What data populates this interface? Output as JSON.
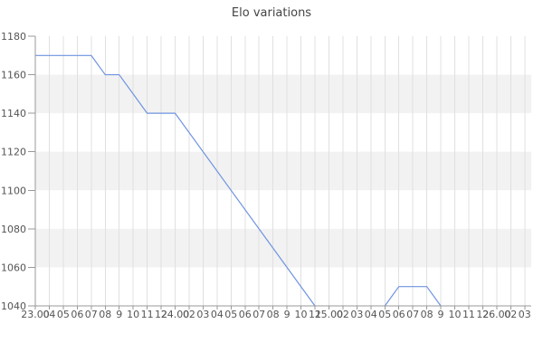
{
  "title": "Elo variations",
  "colors": {
    "line": "#6f93e0",
    "band_gray": "#f2f2f2",
    "band_white": "#ffffff",
    "gridline": "#e0e0e0",
    "axis": "#999999",
    "tick": "#999999",
    "tick_label": "#555555",
    "title_color": "#444444",
    "background": "#ffffff"
  },
  "chart_data": {
    "type": "line",
    "title": "Elo variations",
    "xlabel": "",
    "ylabel": "",
    "legend": "none",
    "grid": "vertical gridlines; alternating horizontal background bands (white/gray) every 20 Elo",
    "ylim": [
      1040,
      1180
    ],
    "y_ticks": [
      1040,
      1060,
      1080,
      1100,
      1120,
      1140,
      1160,
      1180
    ],
    "x_unit": "game time (day.hour), one tick per game",
    "x_tick_labels": [
      "23.00",
      "04",
      "05",
      "06",
      "07",
      "08",
      "9",
      "10",
      "11",
      "12",
      "24.00",
      "02",
      "03",
      "04",
      "05",
      "06",
      "07",
      "08",
      "9",
      "10",
      "11",
      "25.00",
      "02",
      "03",
      "04",
      "05",
      "06",
      "07",
      "08",
      "9",
      "10",
      "11",
      "12",
      "26.00",
      "02",
      "03"
    ],
    "series": [
      {
        "name": "Elo",
        "segments": [
          {
            "x_tick_index": [
              0,
              4,
              5,
              6,
              8,
              10,
              20
            ],
            "y": [
              1170,
              1170,
              1160,
              1160,
              1140,
              1140,
              1040
            ]
          },
          {
            "x_tick_index": [
              25,
              26,
              28,
              29
            ],
            "y": [
              1040,
              1050,
              1050,
              1040
            ]
          }
        ]
      }
    ]
  }
}
